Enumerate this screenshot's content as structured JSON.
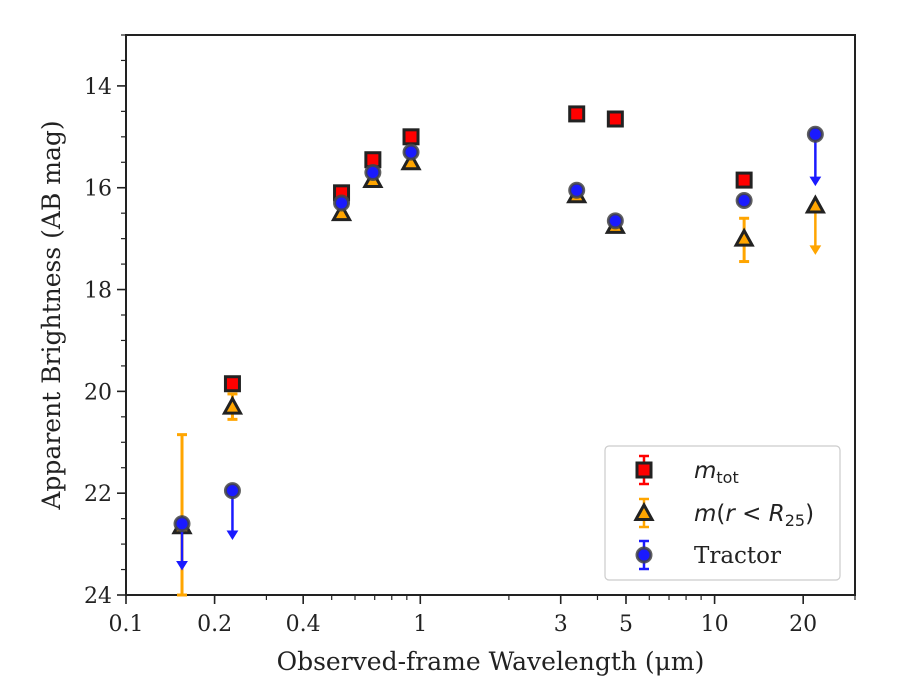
{
  "chart_data": {
    "type": "scatter",
    "xlabel": "Observed-frame Wavelength (μm)",
    "ylabel": "Apparent Brightness (AB mag)",
    "xscale": "log",
    "xlim": [
      0.1,
      30
    ],
    "ylim": [
      24,
      13
    ],
    "y_inverted": true,
    "grid": false,
    "legend_position": "lower-right",
    "x_ticks": [
      0.1,
      0.2,
      0.4,
      1,
      3,
      5,
      10,
      20
    ],
    "x_tick_labels": [
      "0.1",
      "0.2",
      "0.4",
      "1",
      "3",
      "5",
      "10",
      "20"
    ],
    "y_ticks": [
      14,
      16,
      18,
      20,
      22,
      24
    ],
    "y_tick_labels": [
      "14",
      "16",
      "18",
      "20",
      "22",
      "24"
    ],
    "series": [
      {
        "name": "m_tot",
        "legend_label": "mtot",
        "marker": "square",
        "color": "#ff0000",
        "edge_color": "#222222",
        "points": [
          {
            "x": 0.23,
            "y": 19.85
          },
          {
            "x": 0.54,
            "y": 16.1
          },
          {
            "x": 0.69,
            "y": 15.45
          },
          {
            "x": 0.93,
            "y": 15.0
          },
          {
            "x": 3.4,
            "y": 14.55
          },
          {
            "x": 4.6,
            "y": 14.65
          },
          {
            "x": 12.6,
            "y": 15.85
          }
        ]
      },
      {
        "name": "m(r<R25)",
        "legend_label": "m(r < R25)",
        "marker": "triangle",
        "color": "#ffa500",
        "edge_color": "#222222",
        "points": [
          {
            "x": 0.155,
            "y": 22.65,
            "err_lo": 24.0,
            "err_hi": 20.85
          },
          {
            "x": 0.23,
            "y": 20.3,
            "err_lo": 20.55,
            "err_hi": 20.05
          },
          {
            "x": 0.54,
            "y": 16.5
          },
          {
            "x": 0.69,
            "y": 15.85
          },
          {
            "x": 0.93,
            "y": 15.5
          },
          {
            "x": 3.4,
            "y": 16.15
          },
          {
            "x": 4.6,
            "y": 16.75
          },
          {
            "x": 12.6,
            "y": 17.0,
            "err_lo": 17.45,
            "err_hi": 16.6
          },
          {
            "x": 22.0,
            "y": 16.35,
            "upper_limit_to": 17.3
          }
        ]
      },
      {
        "name": "Tractor",
        "legend_label": "Tractor",
        "marker": "circle",
        "color": "#1a1aff",
        "edge_color": "#444444",
        "points": [
          {
            "x": 0.155,
            "y": 22.6,
            "upper_limit_to": 23.5
          },
          {
            "x": 0.23,
            "y": 21.95,
            "upper_limit_to": 22.9
          },
          {
            "x": 0.54,
            "y": 16.3
          },
          {
            "x": 0.69,
            "y": 15.7
          },
          {
            "x": 0.93,
            "y": 15.3
          },
          {
            "x": 3.4,
            "y": 16.05
          },
          {
            "x": 4.6,
            "y": 16.65
          },
          {
            "x": 12.6,
            "y": 16.25
          },
          {
            "x": 22.0,
            "y": 14.95,
            "upper_limit_to": 15.95
          }
        ]
      }
    ]
  }
}
